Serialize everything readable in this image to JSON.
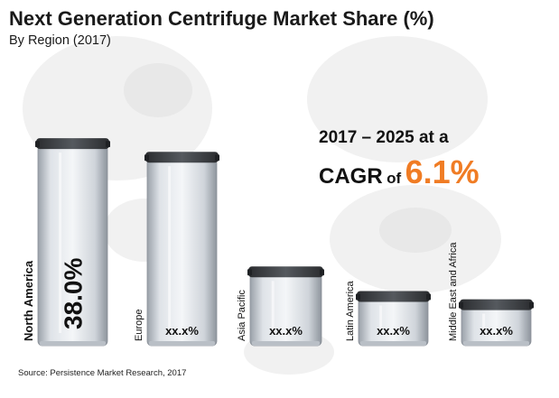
{
  "chart_data": {
    "type": "bar",
    "title": "Next Generation Centrifuge Market Share (%)",
    "subtitle": "By Region (2017)",
    "categories": [
      "North America",
      "Europe",
      "Asia Pacific",
      "Latin America",
      "Middle East and Africa"
    ],
    "value_labels": [
      "38.0%",
      "xx.x%",
      "xx.x%",
      "xx.x%",
      "xx.x%"
    ],
    "values": [
      38.0,
      35.5,
      14.5,
      10.0,
      8.5
    ],
    "ylim": [
      0,
      40
    ],
    "xlabel": "",
    "ylabel": "",
    "grid": false,
    "colors": {
      "cap": "#3f4246",
      "body": "#e3e7ec",
      "accent": "#f07c24"
    }
  },
  "cagr": {
    "line1": "2017 – 2025 at a",
    "label_cagr": "CAGR",
    "label_of": "of",
    "value": "6.1%"
  },
  "source": "Source: Persistence Market Research, 2017"
}
